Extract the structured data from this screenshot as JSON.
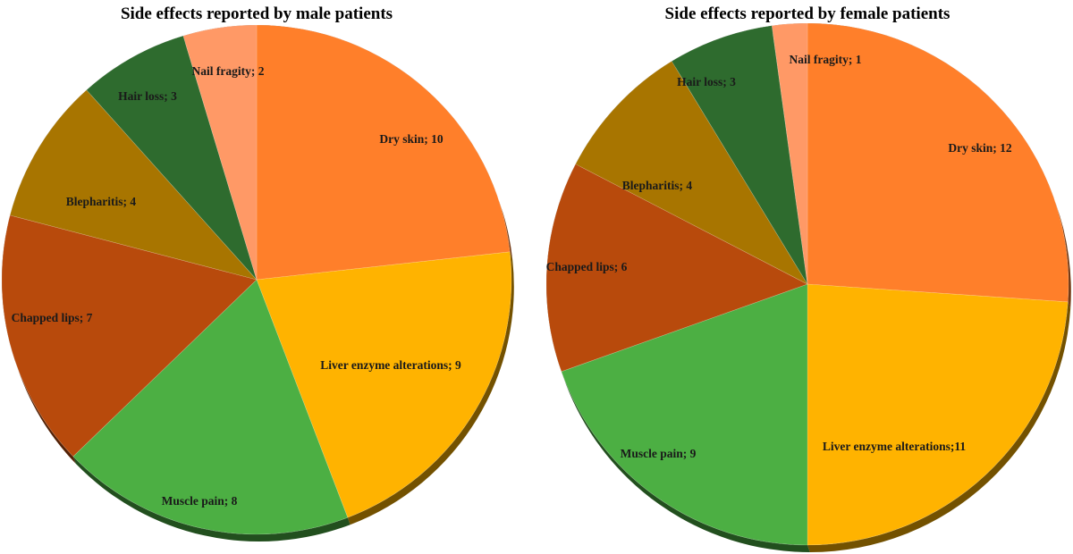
{
  "chart_data": [
    {
      "type": "pie",
      "title": "Side effects reported by male patients",
      "slices": [
        {
          "label": "Dry skin; 10",
          "category": "Dry skin",
          "value": 10,
          "color": "#FF7F2A"
        },
        {
          "label": "Liver enzyme alterations; 9",
          "category": "Liver enzyme alterations",
          "value": 9,
          "color": "#FFB300"
        },
        {
          "label": "Muscle pain; 8",
          "category": "Muscle pain",
          "value": 8,
          "color": "#4CAF43"
        },
        {
          "label": "Chapped lips; 7",
          "category": "Chapped lips",
          "value": 7,
          "color": "#B84A0C"
        },
        {
          "label": "Blepharitis; 4",
          "category": "Blepharitis",
          "value": 4,
          "color": "#A87500"
        },
        {
          "label": "Hair loss; 3",
          "category": "Hair loss",
          "value": 3,
          "color": "#2E6B2E"
        },
        {
          "label": "Nail fragity; 2",
          "category": "Nail fragity",
          "value": 2,
          "color": "#FF9966"
        }
      ]
    },
    {
      "type": "pie",
      "title": "Side effects reported by female patients",
      "slices": [
        {
          "label": "Dry skin; 12",
          "category": "Dry skin",
          "value": 12,
          "color": "#FF7F2A"
        },
        {
          "label": "Liver enzyme alterations;11",
          "category": "Liver enzyme alterations",
          "value": 11,
          "color": "#FFB300"
        },
        {
          "label": "Muscle pain; 9",
          "category": "Muscle pain",
          "value": 9,
          "color": "#4CAF43"
        },
        {
          "label": "Chapped lips; 6",
          "category": "Chapped lips",
          "value": 6,
          "color": "#B84A0C"
        },
        {
          "label": "Blepharitis; 4",
          "category": "Blepharitis",
          "value": 4,
          "color": "#A87500"
        },
        {
          "label": "Hair loss; 3",
          "category": "Hair loss",
          "value": 3,
          "color": "#2E6B2E"
        },
        {
          "label": "Nail fragity; 1",
          "category": "Nail fragity",
          "value": 1,
          "color": "#FF9966"
        }
      ]
    }
  ]
}
